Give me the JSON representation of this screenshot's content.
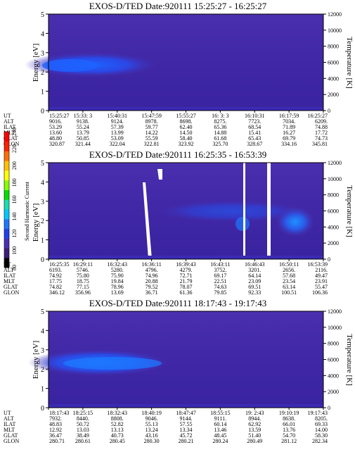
{
  "chart_data": [
    {
      "type": "heatmap",
      "title": "EXOS-D/TED   Date:920111   15:25:27 - 16:25:27",
      "ylabel": "Energy [eV]",
      "ylim": [
        0,
        5
      ],
      "yticks": [
        "0",
        "1",
        "2",
        "3",
        "4",
        "5"
      ],
      "y2label": "Temperature [K]",
      "y2lim": [
        0,
        12000
      ],
      "y2ticks": [
        "0",
        "2000",
        "4000",
        "6000",
        "8000",
        "10000",
        "12000"
      ],
      "row_labels": [
        "UT",
        "ALT",
        "ILAT",
        "MLT",
        "GLAT",
        "GLON"
      ],
      "rows": [
        [
          "15:25:27",
          "15:33: 3",
          "15:40:31",
          "15:47:59",
          "15:55:27",
          "16: 3: 3",
          "16:10:31",
          "16:17:59",
          "16:25:27"
        ],
        [
          "9016.",
          "9138.",
          "9124.",
          "8978.",
          "8698.",
          "8275.",
          "7723.",
          "7034.",
          "6209."
        ],
        [
          "53.29",
          "55.24",
          "57.39",
          "59.77",
          "62.40",
          "65.36",
          "68.54",
          "71.89",
          "74.88"
        ],
        [
          "13.60",
          "13.79",
          "13.99",
          "14.22",
          "14.50",
          "14.88",
          "15.41",
          "16.27",
          "17.72"
        ],
        [
          "48.80",
          "50.85",
          "53.09",
          "55.59",
          "58.40",
          "61.68",
          "65.43",
          "69.79",
          "74.73"
        ],
        [
          "320.87",
          "321.44",
          "322.04",
          "322.81",
          "323.92",
          "325.70",
          "328.67",
          "334.16",
          "345.81"
        ]
      ]
    },
    {
      "type": "heatmap",
      "title": "EXOS-D/TED   Date:920111   16:25:35 - 16:53:39",
      "ylabel": "Energy [eV]",
      "ylim": [
        0,
        5
      ],
      "yticks": [
        "0",
        "1",
        "2",
        "3",
        "4",
        "5"
      ],
      "y2label": "Temperature [K]",
      "y2lim": [
        0,
        12000
      ],
      "y2ticks": [
        "0",
        "2000",
        "4000",
        "6000",
        "8000",
        "10000",
        "12000"
      ],
      "row_labels": [
        "UT",
        "ALT",
        "ILAT",
        "MLT",
        "GLAT",
        "GLON"
      ],
      "rows": [
        [
          "16:25:35",
          "16:29:11",
          "16:32:43",
          "16:36:11",
          "16:39:43",
          "16:43:11",
          "16:46:43",
          "16:50:11",
          "16:53:39"
        ],
        [
          "6193.",
          "5746.",
          "5280.",
          "4796.",
          "4279.",
          "3752.",
          "3201.",
          "2656.",
          "2116."
        ],
        [
          "74.92",
          "75.80",
          "75.90",
          "74.96",
          "72.71",
          "69.17",
          "64.14",
          "57.68",
          "49.47"
        ],
        [
          "17.75",
          "18.75",
          "19.84",
          "20.88",
          "21.79",
          "22.51",
          "23.09",
          "23.54",
          "23.91"
        ],
        [
          "74.82",
          "77.15",
          "78.96",
          "79.52",
          "78.07",
          "74.63",
          "69.51",
          "63.14",
          "55.47"
        ],
        [
          "346.12",
          "356.96",
          "13.69",
          "36.71",
          "61.36",
          "79.85",
          "92.33",
          "100.51",
          "106.36"
        ]
      ]
    },
    {
      "type": "heatmap",
      "title": "EXOS-D/TED   Date:920111   18:17:43 - 19:17:43",
      "ylabel": "Energy [eV]",
      "ylim": [
        0,
        5
      ],
      "yticks": [
        "0",
        "1",
        "2",
        "3",
        "4",
        "5"
      ],
      "y2label": "Temperature [K]",
      "y2lim": [
        0,
        12000
      ],
      "y2ticks": [
        "0",
        "2000",
        "4000",
        "6000",
        "8000",
        "10000",
        "12000"
      ],
      "row_labels": [
        "UT",
        "ALT",
        "ILAT",
        "MLT",
        "GLAT",
        "GLON"
      ],
      "rows": [
        [
          "18:17:43",
          "18:25:15",
          "18:32:43",
          "18:40:19",
          "18:47:47",
          "18:55:15",
          "19: 2:43",
          "19:10:19",
          "19:17:43"
        ],
        [
          "7932.",
          "8440.",
          "8808.",
          "9046.",
          "9144.",
          "9111.",
          "8944.",
          "8638.",
          "8205."
        ],
        [
          "48.83",
          "50.72",
          "52.82",
          "55.13",
          "57.55",
          "60.14",
          "62.92",
          "66.01",
          "69.33"
        ],
        [
          "12.92",
          "13.03",
          "13.13",
          "13.24",
          "13.34",
          "13.46",
          "13.59",
          "13.76",
          "14.00"
        ],
        [
          "36.47",
          "38.49",
          "40.73",
          "43.16",
          "45.72",
          "48.45",
          "51.40",
          "54.70",
          "58.30"
        ],
        [
          "280.71",
          "280.61",
          "280.45",
          "280.30",
          "280.21",
          "280.24",
          "280.49",
          "281.12",
          "282.34"
        ]
      ]
    }
  ],
  "colorbar": {
    "label": "Second Harmonic Current",
    "ticks": [
      "80",
      "100",
      "120",
      "140",
      "160",
      "180",
      "200",
      "220",
      "240"
    ],
    "colors": [
      "#000000",
      "#3c1e78",
      "#4a2fb5",
      "#2040ee",
      "#1e78ff",
      "#00c8ff",
      "#19e0b0",
      "#00e000",
      "#88ff00",
      "#ffff00",
      "#ffc000",
      "#ff7000",
      "#ff2000",
      "#ff0000"
    ]
  }
}
